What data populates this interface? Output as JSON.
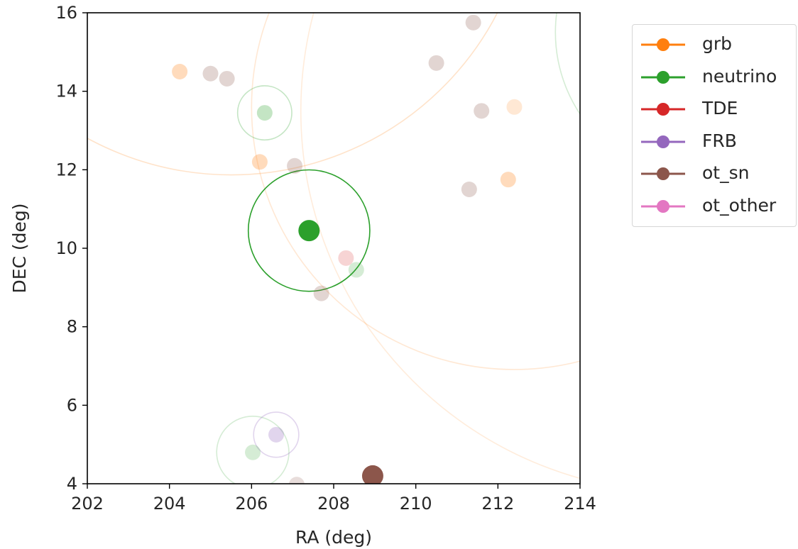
{
  "chart_data": {
    "type": "scatter",
    "title": "",
    "xlabel": "RA (deg)",
    "ylabel": "DEC (deg)",
    "xlim": [
      202,
      214
    ],
    "ylim": [
      4,
      16
    ],
    "xticks": [
      "202",
      "204",
      "206",
      "208",
      "210",
      "212",
      "214"
    ],
    "yticks": [
      "4",
      "6",
      "8",
      "10",
      "12",
      "14",
      "16"
    ],
    "grid": false,
    "legend_position": "outside-top-right",
    "series": [
      {
        "name": "grb",
        "color": "#ff7f0e",
        "points": [
          {
            "ra": 204.25,
            "dec": 14.5,
            "err_deg": 0,
            "opacity": 0.28
          },
          {
            "ra": 206.2,
            "dec": 12.2,
            "err_deg": 0,
            "opacity": 0.28
          },
          {
            "ra": 212.25,
            "dec": 11.75,
            "err_deg": 0,
            "opacity": 0.28
          },
          {
            "ra": 205.5,
            "dec": 19.5,
            "err_deg": 7.3,
            "opacity": 0.22
          },
          {
            "ra": 212.4,
            "dec": 13.6,
            "err_deg": 6.4,
            "opacity": 0.18
          },
          {
            "ra": 216.5,
            "dec": 13.5,
            "err_deg": 9.3,
            "opacity": 0.15
          }
        ]
      },
      {
        "name": "neutrino",
        "color": "#2ca02c",
        "points": [
          {
            "ra": 207.4,
            "dec": 10.45,
            "err_deg": 1.48,
            "opacity": 1.0,
            "highlight": true
          },
          {
            "ra": 206.32,
            "dec": 13.45,
            "err_deg": 0.66,
            "opacity": 0.28
          },
          {
            "ra": 206.03,
            "dec": 4.8,
            "err_deg": 0.88,
            "opacity": 0.2
          },
          {
            "ra": 208.55,
            "dec": 9.45,
            "err_deg": 0,
            "opacity": 0.2
          },
          {
            "ra": 217.0,
            "dec": 15.5,
            "err_deg": 3.6,
            "opacity": 0.2
          }
        ]
      },
      {
        "name": "TDE",
        "color": "#d62728",
        "points": [
          {
            "ra": 208.3,
            "dec": 9.75,
            "err_deg": 0,
            "opacity": 0.2
          }
        ]
      },
      {
        "name": "FRB",
        "color": "#9467bd",
        "points": [
          {
            "ra": 206.6,
            "dec": 5.25,
            "err_deg": 0.55,
            "opacity": 0.28
          }
        ]
      },
      {
        "name": "ot_sn",
        "color": "#8c564b",
        "points": [
          {
            "ra": 208.95,
            "dec": 4.2,
            "err_deg": 0,
            "opacity": 1.0,
            "highlight": true
          },
          {
            "ra": 205.0,
            "dec": 14.45,
            "err_deg": 0,
            "opacity": 0.25
          },
          {
            "ra": 205.4,
            "dec": 14.32,
            "err_deg": 0,
            "opacity": 0.25
          },
          {
            "ra": 207.05,
            "dec": 12.1,
            "err_deg": 0,
            "opacity": 0.25
          },
          {
            "ra": 207.7,
            "dec": 8.85,
            "err_deg": 0,
            "opacity": 0.25
          },
          {
            "ra": 210.5,
            "dec": 14.72,
            "err_deg": 0,
            "opacity": 0.25
          },
          {
            "ra": 211.4,
            "dec": 15.75,
            "err_deg": 0,
            "opacity": 0.25
          },
          {
            "ra": 211.6,
            "dec": 13.5,
            "err_deg": 0,
            "opacity": 0.25
          },
          {
            "ra": 211.3,
            "dec": 11.5,
            "err_deg": 0,
            "opacity": 0.25
          },
          {
            "ra": 207.1,
            "dec": 3.98,
            "err_deg": 0,
            "opacity": 0.2
          }
        ]
      },
      {
        "name": "ot_other",
        "color": "#e377c2",
        "points": []
      }
    ]
  }
}
